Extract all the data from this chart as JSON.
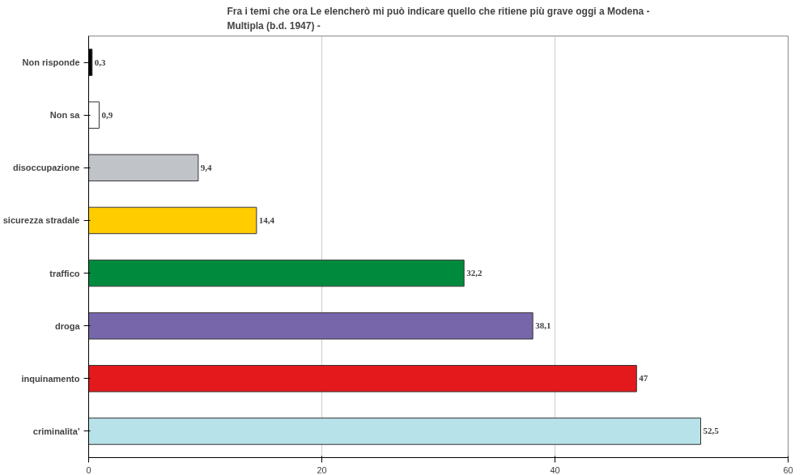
{
  "chart_data": {
    "type": "bar",
    "orientation": "horizontal",
    "title": "Fra i temi che ora Le elencherò mi può indicare quello che ritiene più grave oggi a Modena - Multipla (b.d. 1947) -",
    "categories": [
      "Non risponde",
      "Non sa",
      "disoccupazione",
      "sicurezza stradale",
      "traffico",
      "droga",
      "inquinamento",
      "criminalita'"
    ],
    "values": [
      0.3,
      0.9,
      9.4,
      14.4,
      32.2,
      38.1,
      47,
      52.5
    ],
    "value_labels": [
      "0,3",
      "0,9",
      "9,4",
      "14,4",
      "32,2",
      "38,1",
      "47",
      "52,5"
    ],
    "colors": [
      "#000000",
      "#ffffff",
      "#c0c4c8",
      "#ffcc00",
      "#008a3e",
      "#7766aa",
      "#e3191c",
      "#b8e2ea"
    ],
    "xlim": [
      0,
      60
    ],
    "xticks": [
      0,
      20,
      40,
      60
    ],
    "grid": "x"
  }
}
